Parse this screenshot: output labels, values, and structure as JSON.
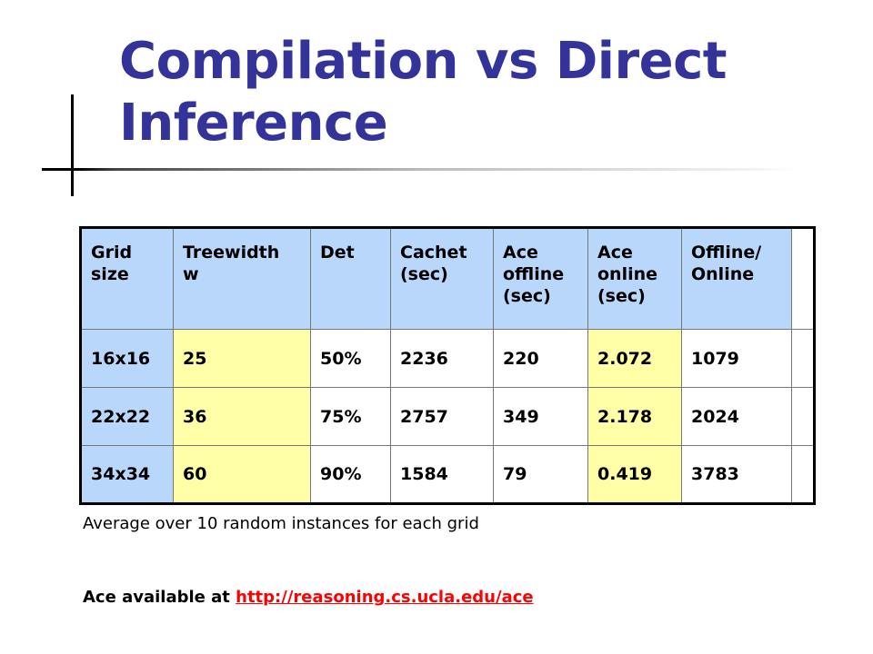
{
  "slide": {
    "title_line1": "Compilation vs Direct",
    "title_line2": "Inference"
  },
  "table": {
    "headers": [
      [
        "Grid",
        "size"
      ],
      [
        "Treewidth",
        "w"
      ],
      [
        "Det"
      ],
      [
        "Cachet",
        "(sec)"
      ],
      [
        "Ace",
        "offline",
        "(sec)"
      ],
      [
        "Ace",
        "online",
        "(sec)"
      ],
      [
        "Offline/",
        "Online"
      ]
    ],
    "rows": [
      [
        "16x16",
        "25",
        "50%",
        "2236",
        "220",
        "2.072",
        "1079"
      ],
      [
        "22x22",
        "36",
        "75%",
        "2757",
        "349",
        "2.178",
        "2024"
      ],
      [
        "34x34",
        "60",
        "90%",
        "1584",
        "79",
        "0.419",
        "3783"
      ]
    ]
  },
  "note": "Average over 10 random instances for each grid",
  "availability": {
    "label": "Ace available at ",
    "link": "http://reasoning.cs.ucla.edu/ace"
  },
  "colors": {
    "title": "#333399",
    "header_blue": "#b8d7fb",
    "highlight_yellow": "#ffffa8",
    "link_red": "#ff0000"
  }
}
